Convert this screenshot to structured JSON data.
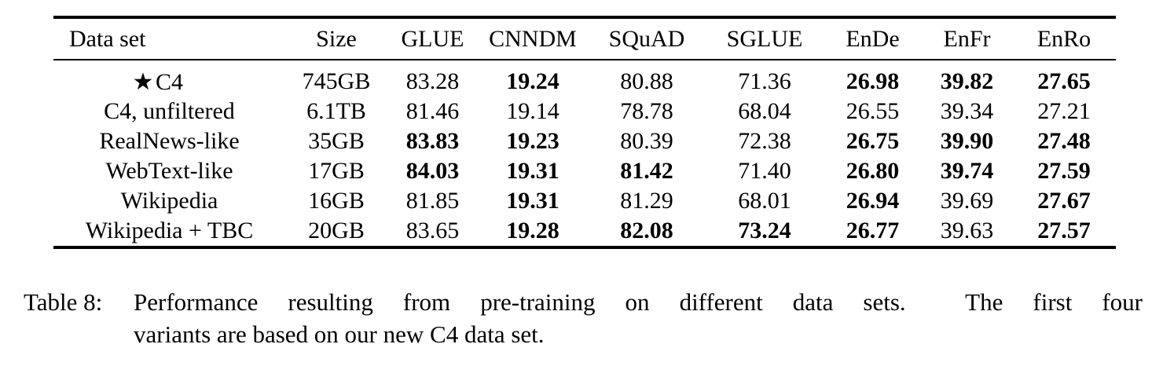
{
  "table": {
    "star_symbol": "★",
    "columns": [
      "Data set",
      "Size",
      "GLUE",
      "CNNDM",
      "SQuAD",
      "SGLUE",
      "EnDe",
      "EnFr",
      "EnRo"
    ],
    "rows": [
      {
        "label": "C4",
        "starred": true,
        "values": [
          {
            "text": "745GB"
          },
          {
            "text": "83.28"
          },
          {
            "text": "19.24",
            "bold": true
          },
          {
            "text": "80.88"
          },
          {
            "text": "71.36"
          },
          {
            "text": "26.98",
            "bold": true
          },
          {
            "text": "39.82",
            "bold": true
          },
          {
            "text": "27.65",
            "bold": true
          }
        ]
      },
      {
        "label": "C4, unfiltered",
        "starred": false,
        "values": [
          {
            "text": "6.1TB"
          },
          {
            "text": "81.46"
          },
          {
            "text": "19.14"
          },
          {
            "text": "78.78"
          },
          {
            "text": "68.04"
          },
          {
            "text": "26.55"
          },
          {
            "text": "39.34"
          },
          {
            "text": "27.21"
          }
        ]
      },
      {
        "label": "RealNews-like",
        "starred": false,
        "values": [
          {
            "text": "35GB"
          },
          {
            "text": "83.83",
            "bold": true
          },
          {
            "text": "19.23",
            "bold": true
          },
          {
            "text": "80.39"
          },
          {
            "text": "72.38"
          },
          {
            "text": "26.75",
            "bold": true
          },
          {
            "text": "39.90",
            "bold": true
          },
          {
            "text": "27.48",
            "bold": true
          }
        ]
      },
      {
        "label": "WebText-like",
        "starred": false,
        "values": [
          {
            "text": "17GB"
          },
          {
            "text": "84.03",
            "bold": true
          },
          {
            "text": "19.31",
            "bold": true
          },
          {
            "text": "81.42",
            "bold": true
          },
          {
            "text": "71.40"
          },
          {
            "text": "26.80",
            "bold": true
          },
          {
            "text": "39.74",
            "bold": true
          },
          {
            "text": "27.59",
            "bold": true
          }
        ]
      },
      {
        "label": "Wikipedia",
        "starred": false,
        "values": [
          {
            "text": "16GB"
          },
          {
            "text": "81.85"
          },
          {
            "text": "19.31",
            "bold": true
          },
          {
            "text": "81.29"
          },
          {
            "text": "68.01"
          },
          {
            "text": "26.94",
            "bold": true
          },
          {
            "text": "39.69"
          },
          {
            "text": "27.67",
            "bold": true
          }
        ]
      },
      {
        "label": "Wikipedia + TBC",
        "starred": false,
        "values": [
          {
            "text": "20GB"
          },
          {
            "text": "83.65"
          },
          {
            "text": "19.28",
            "bold": true
          },
          {
            "text": "82.08",
            "bold": true
          },
          {
            "text": "73.24",
            "bold": true
          },
          {
            "text": "26.77",
            "bold": true
          },
          {
            "text": "39.63"
          },
          {
            "text": "27.57",
            "bold": true
          }
        ]
      }
    ]
  },
  "caption": {
    "label": "Table 8:",
    "line1": "Performance resulting from pre-training on different data sets.  The first four",
    "line2": "variants are based on our new C4 data set."
  },
  "colors": {
    "text": "#000000",
    "background": "#ffffff",
    "rule": "#000000"
  }
}
